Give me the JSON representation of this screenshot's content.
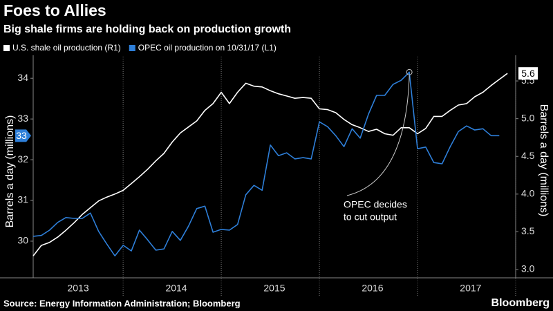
{
  "chart_data": {
    "type": "line",
    "title": "Foes to Allies",
    "subtitle": "Big shale firms are holding back on production growth",
    "y_label": "Barrels a day (millions)",
    "y2_label": "Barrels a day (millions)",
    "annotation": [
      "OPEC decides",
      "to cut output"
    ],
    "source": "Source: Energy Information Administration; Bloomberg",
    "brand": "Bloomberg",
    "x": [
      2013,
      2013.083,
      2013.167,
      2013.25,
      2013.333,
      2013.417,
      2013.5,
      2013.583,
      2013.667,
      2013.75,
      2013.833,
      2013.917,
      2014,
      2014.083,
      2014.167,
      2014.25,
      2014.333,
      2014.417,
      2014.5,
      2014.583,
      2014.667,
      2014.75,
      2014.833,
      2014.917,
      2015,
      2015.083,
      2015.167,
      2015.25,
      2015.333,
      2015.417,
      2015.5,
      2015.583,
      2015.667,
      2015.75,
      2015.833,
      2015.917,
      2016,
      2016.083,
      2016.167,
      2016.25,
      2016.333,
      2016.417,
      2016.5,
      2016.583,
      2016.667,
      2016.75,
      2016.833,
      2016.917,
      2017,
      2017.083,
      2017.167,
      2017.25,
      2017.333,
      2017.417,
      2017.5,
      2017.583,
      2017.667,
      2017.75,
      2017.833
    ],
    "series": [
      {
        "name": "U.S. shale oil production (R1)",
        "color": "#ffffff",
        "axis": "y2",
        "end_label": "5.6",
        "values": [
          3.18,
          3.32,
          3.36,
          3.43,
          3.52,
          3.62,
          3.73,
          3.82,
          3.91,
          3.96,
          4.0,
          4.05,
          4.14,
          4.23,
          4.33,
          4.44,
          4.54,
          4.69,
          4.81,
          4.89,
          4.97,
          5.11,
          5.2,
          5.35,
          5.2,
          5.35,
          5.47,
          5.43,
          5.42,
          5.37,
          5.33,
          5.3,
          5.27,
          5.28,
          5.27,
          5.13,
          5.12,
          5.08,
          4.99,
          4.92,
          4.88,
          4.83,
          4.86,
          4.8,
          4.78,
          4.88,
          4.88,
          4.8,
          4.87,
          5.03,
          5.03,
          5.11,
          5.18,
          5.2,
          5.29,
          5.35,
          5.44,
          5.52,
          5.6
        ]
      },
      {
        "name": "OPEC oil production on 10/31/17 (L1)",
        "color": "#2e7fd9",
        "axis": "y",
        "end_label": "33",
        "values": [
          30.12,
          30.14,
          30.27,
          30.46,
          30.58,
          30.56,
          30.56,
          30.69,
          30.24,
          29.93,
          29.64,
          29.9,
          29.76,
          30.27,
          30.03,
          29.78,
          29.81,
          30.24,
          30.02,
          30.37,
          30.8,
          30.86,
          30.22,
          30.29,
          30.27,
          30.41,
          31.14,
          31.37,
          31.25,
          32.36,
          32.1,
          32.17,
          32.02,
          32.05,
          32.02,
          32.93,
          32.81,
          32.59,
          32.32,
          32.76,
          32.53,
          33.12,
          33.58,
          33.58,
          33.85,
          33.95,
          34.15,
          32.27,
          32.31,
          31.93,
          31.9,
          32.32,
          32.69,
          32.83,
          32.73,
          32.76,
          32.59,
          32.59,
          null
        ]
      }
    ],
    "xlim": [
      2013,
      2017.917
    ],
    "xticks": [
      2013,
      2014,
      2015,
      2016,
      2017
    ],
    "ylim": [
      29.1,
      34.36
    ],
    "yticks": [
      30,
      31,
      32,
      33,
      34
    ],
    "y2lim": [
      2.89,
      5.73
    ],
    "y2ticks": [
      {
        "value": 3,
        "label": "3.0"
      },
      3.5,
      {
        "value": 4,
        "label": "4.0"
      },
      4.5,
      {
        "value": 5,
        "label": "5.0"
      },
      5.5
    ]
  }
}
